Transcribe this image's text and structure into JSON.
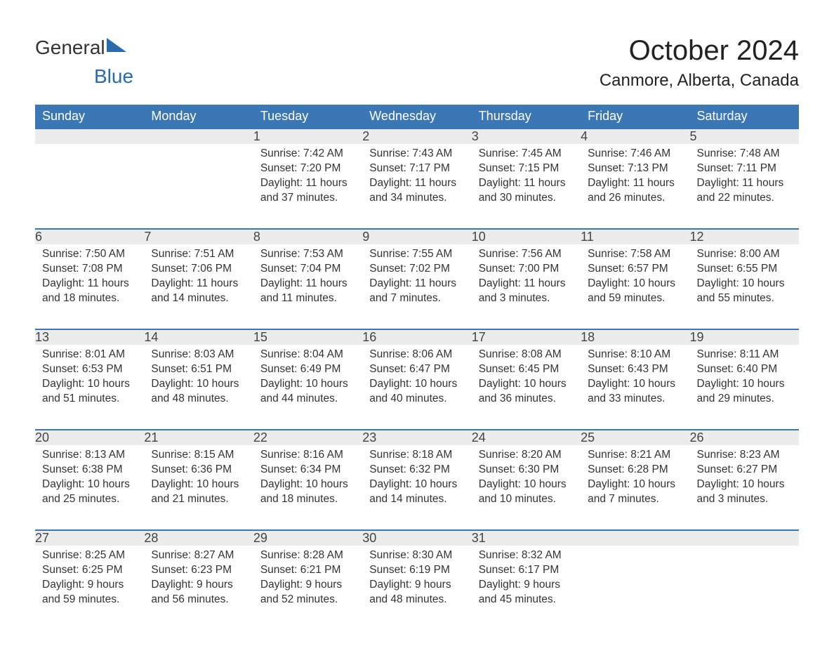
{
  "logo": {
    "text1": "General",
    "text2": "Blue"
  },
  "title": "October 2024",
  "location": "Canmore, Alberta, Canada",
  "colors": {
    "header_bg": "#3b77b5",
    "header_text": "#ffffff",
    "daynum_bg": "#ececec",
    "border_top": "#3b77b5",
    "text": "#333333",
    "logo_blue": "#2b6aab"
  },
  "dayNames": [
    "Sunday",
    "Monday",
    "Tuesday",
    "Wednesday",
    "Thursday",
    "Friday",
    "Saturday"
  ],
  "labels": {
    "sunrise": "Sunrise: ",
    "sunset": "Sunset: ",
    "daylight": "Daylight: "
  },
  "weeks": [
    [
      null,
      null,
      {
        "n": "1",
        "sr": "7:42 AM",
        "ss": "7:20 PM",
        "dl": "11 hours and 37 minutes."
      },
      {
        "n": "2",
        "sr": "7:43 AM",
        "ss": "7:17 PM",
        "dl": "11 hours and 34 minutes."
      },
      {
        "n": "3",
        "sr": "7:45 AM",
        "ss": "7:15 PM",
        "dl": "11 hours and 30 minutes."
      },
      {
        "n": "4",
        "sr": "7:46 AM",
        "ss": "7:13 PM",
        "dl": "11 hours and 26 minutes."
      },
      {
        "n": "5",
        "sr": "7:48 AM",
        "ss": "7:11 PM",
        "dl": "11 hours and 22 minutes."
      }
    ],
    [
      {
        "n": "6",
        "sr": "7:50 AM",
        "ss": "7:08 PM",
        "dl": "11 hours and 18 minutes."
      },
      {
        "n": "7",
        "sr": "7:51 AM",
        "ss": "7:06 PM",
        "dl": "11 hours and 14 minutes."
      },
      {
        "n": "8",
        "sr": "7:53 AM",
        "ss": "7:04 PM",
        "dl": "11 hours and 11 minutes."
      },
      {
        "n": "9",
        "sr": "7:55 AM",
        "ss": "7:02 PM",
        "dl": "11 hours and 7 minutes."
      },
      {
        "n": "10",
        "sr": "7:56 AM",
        "ss": "7:00 PM",
        "dl": "11 hours and 3 minutes."
      },
      {
        "n": "11",
        "sr": "7:58 AM",
        "ss": "6:57 PM",
        "dl": "10 hours and 59 minutes."
      },
      {
        "n": "12",
        "sr": "8:00 AM",
        "ss": "6:55 PM",
        "dl": "10 hours and 55 minutes."
      }
    ],
    [
      {
        "n": "13",
        "sr": "8:01 AM",
        "ss": "6:53 PM",
        "dl": "10 hours and 51 minutes."
      },
      {
        "n": "14",
        "sr": "8:03 AM",
        "ss": "6:51 PM",
        "dl": "10 hours and 48 minutes."
      },
      {
        "n": "15",
        "sr": "8:04 AM",
        "ss": "6:49 PM",
        "dl": "10 hours and 44 minutes."
      },
      {
        "n": "16",
        "sr": "8:06 AM",
        "ss": "6:47 PM",
        "dl": "10 hours and 40 minutes."
      },
      {
        "n": "17",
        "sr": "8:08 AM",
        "ss": "6:45 PM",
        "dl": "10 hours and 36 minutes."
      },
      {
        "n": "18",
        "sr": "8:10 AM",
        "ss": "6:43 PM",
        "dl": "10 hours and 33 minutes."
      },
      {
        "n": "19",
        "sr": "8:11 AM",
        "ss": "6:40 PM",
        "dl": "10 hours and 29 minutes."
      }
    ],
    [
      {
        "n": "20",
        "sr": "8:13 AM",
        "ss": "6:38 PM",
        "dl": "10 hours and 25 minutes."
      },
      {
        "n": "21",
        "sr": "8:15 AM",
        "ss": "6:36 PM",
        "dl": "10 hours and 21 minutes."
      },
      {
        "n": "22",
        "sr": "8:16 AM",
        "ss": "6:34 PM",
        "dl": "10 hours and 18 minutes."
      },
      {
        "n": "23",
        "sr": "8:18 AM",
        "ss": "6:32 PM",
        "dl": "10 hours and 14 minutes."
      },
      {
        "n": "24",
        "sr": "8:20 AM",
        "ss": "6:30 PM",
        "dl": "10 hours and 10 minutes."
      },
      {
        "n": "25",
        "sr": "8:21 AM",
        "ss": "6:28 PM",
        "dl": "10 hours and 7 minutes."
      },
      {
        "n": "26",
        "sr": "8:23 AM",
        "ss": "6:27 PM",
        "dl": "10 hours and 3 minutes."
      }
    ],
    [
      {
        "n": "27",
        "sr": "8:25 AM",
        "ss": "6:25 PM",
        "dl": "9 hours and 59 minutes."
      },
      {
        "n": "28",
        "sr": "8:27 AM",
        "ss": "6:23 PM",
        "dl": "9 hours and 56 minutes."
      },
      {
        "n": "29",
        "sr": "8:28 AM",
        "ss": "6:21 PM",
        "dl": "9 hours and 52 minutes."
      },
      {
        "n": "30",
        "sr": "8:30 AM",
        "ss": "6:19 PM",
        "dl": "9 hours and 48 minutes."
      },
      {
        "n": "31",
        "sr": "8:32 AM",
        "ss": "6:17 PM",
        "dl": "9 hours and 45 minutes."
      },
      null,
      null
    ]
  ]
}
